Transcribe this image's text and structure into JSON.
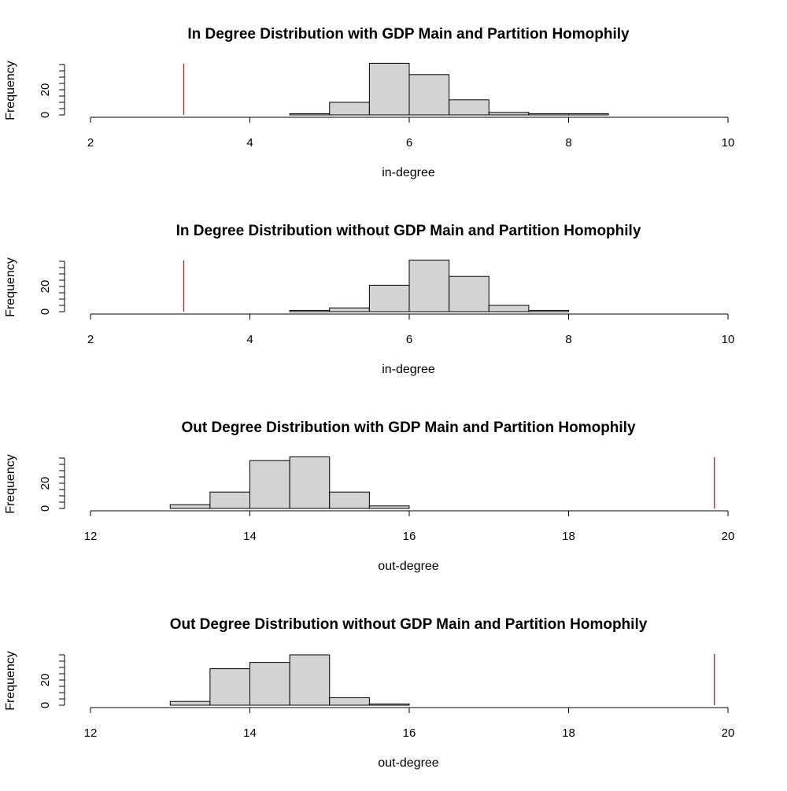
{
  "chart_data": [
    {
      "type": "bar",
      "title": "In Degree Distribution with GDP Main and Partition Homophily",
      "xlabel": "in-degree",
      "ylabel": "Frequency",
      "xlim": [
        2,
        10
      ],
      "ylim": [
        0,
        40
      ],
      "x_ticks": [
        2,
        4,
        6,
        8,
        10
      ],
      "y_ticks": [
        0,
        20
      ],
      "bins": [
        {
          "start": 4.5,
          "end": 5.0,
          "count": 1
        },
        {
          "start": 5.0,
          "end": 5.5,
          "count": 10
        },
        {
          "start": 5.5,
          "end": 6.0,
          "count": 41
        },
        {
          "start": 6.0,
          "end": 6.5,
          "count": 32
        },
        {
          "start": 6.5,
          "end": 7.0,
          "count": 12
        },
        {
          "start": 7.0,
          "end": 7.5,
          "count": 2
        },
        {
          "start": 7.5,
          "end": 8.0,
          "count": 1
        },
        {
          "start": 8.0,
          "end": 8.5,
          "count": 1
        }
      ],
      "reference_line": {
        "x": 3.17,
        "color": "#b22222"
      },
      "grid": false
    },
    {
      "type": "bar",
      "title": "In Degree Distribution without GDP Main and Partition Homophily",
      "xlabel": "in-degree",
      "ylabel": "Frequency",
      "xlim": [
        2,
        10
      ],
      "ylim": [
        0,
        40
      ],
      "x_ticks": [
        2,
        4,
        6,
        8,
        10
      ],
      "y_ticks": [
        0,
        20
      ],
      "bins": [
        {
          "start": 4.5,
          "end": 5.0,
          "count": 1
        },
        {
          "start": 5.0,
          "end": 5.5,
          "count": 3
        },
        {
          "start": 5.5,
          "end": 6.0,
          "count": 21
        },
        {
          "start": 6.0,
          "end": 6.5,
          "count": 41
        },
        {
          "start": 6.5,
          "end": 7.0,
          "count": 28
        },
        {
          "start": 7.0,
          "end": 7.5,
          "count": 5
        },
        {
          "start": 7.5,
          "end": 8.0,
          "count": 1
        }
      ],
      "reference_line": {
        "x": 3.17,
        "color": "#b22222"
      },
      "grid": false
    },
    {
      "type": "bar",
      "title": "Out Degree Distribution with GDP Main and Partition Homophily",
      "xlabel": "out-degree",
      "ylabel": "Frequency",
      "xlim": [
        12,
        20
      ],
      "ylim": [
        0,
        40
      ],
      "x_ticks": [
        12,
        14,
        16,
        18,
        20
      ],
      "y_ticks": [
        0,
        20
      ],
      "bins": [
        {
          "start": 13.0,
          "end": 13.5,
          "count": 3
        },
        {
          "start": 13.5,
          "end": 14.0,
          "count": 13
        },
        {
          "start": 14.0,
          "end": 14.5,
          "count": 38
        },
        {
          "start": 14.5,
          "end": 15.0,
          "count": 41
        },
        {
          "start": 15.0,
          "end": 15.5,
          "count": 13
        },
        {
          "start": 15.5,
          "end": 16.0,
          "count": 2
        }
      ],
      "reference_line": {
        "x": 19.83,
        "color": "#b22222"
      },
      "grid": false
    },
    {
      "type": "bar",
      "title": "Out Degree Distribution without GDP Main and Partition Homophily",
      "xlabel": "out-degree",
      "ylabel": "Frequency",
      "xlim": [
        12,
        20
      ],
      "ylim": [
        0,
        40
      ],
      "x_ticks": [
        12,
        14,
        16,
        18,
        20
      ],
      "y_ticks": [
        0,
        20
      ],
      "bins": [
        {
          "start": 13.0,
          "end": 13.5,
          "count": 3
        },
        {
          "start": 13.5,
          "end": 14.0,
          "count": 29
        },
        {
          "start": 14.0,
          "end": 14.5,
          "count": 34
        },
        {
          "start": 14.5,
          "end": 15.0,
          "count": 40
        },
        {
          "start": 15.0,
          "end": 15.5,
          "count": 6
        },
        {
          "start": 15.5,
          "end": 16.0,
          "count": 1
        }
      ],
      "reference_line": {
        "x": 19.83,
        "color": "#b22222"
      },
      "grid": false
    }
  ]
}
